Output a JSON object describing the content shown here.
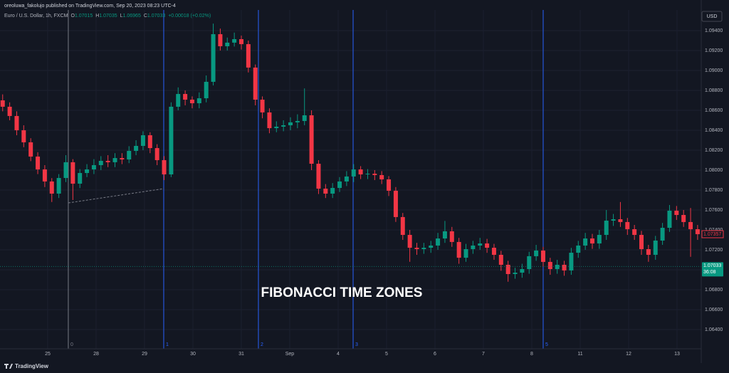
{
  "header": {
    "publisher": "oreoluwa_fakolujo published on TradingView.com, Sep 20, 2023 08:23 UTC-4",
    "symbol": "Euro / U.S. Dollar, 1h, FXCM",
    "ohlc_legend": [
      {
        "label": "O",
        "value": "1.07015"
      },
      {
        "label": "H",
        "value": "1.07035"
      },
      {
        "label": "L",
        "value": "1.06965"
      },
      {
        "label": "C",
        "value": "1.07033"
      }
    ],
    "change": "+0.00018 (+0.02%)",
    "currency": "USD",
    "branding": "TradingView"
  },
  "chart_data": {
    "type": "candlestick",
    "annotation": "FIBONACCI TIME ZONES",
    "up_color": "#089981",
    "down_color": "#f23645",
    "grid": true,
    "x": [
      -0.93,
      -0.785,
      -0.64,
      -0.495,
      -0.35,
      -0.205,
      -0.06,
      0.085,
      0.23,
      0.375,
      0.52,
      0.665,
      0.81,
      0.955,
      1.1,
      1.245,
      1.39,
      1.535,
      1.68,
      1.825,
      1.97,
      2.115,
      2.26,
      2.405,
      2.55,
      2.695,
      2.84,
      2.985,
      3.13,
      3.275,
      3.42,
      3.565,
      3.71,
      3.855,
      4.0,
      4.145,
      4.29,
      4.435,
      4.58,
      4.725,
      4.87,
      5.015,
      5.16,
      5.305,
      5.45,
      5.595,
      5.74,
      5.885,
      6.03,
      6.175,
      6.32,
      6.465,
      6.61,
      6.755,
      6.9,
      7.045,
      7.19,
      7.335,
      7.48,
      7.625,
      7.77,
      7.915,
      8.06,
      8.205,
      8.35,
      8.495,
      8.64,
      8.785,
      8.93,
      9.075,
      9.22,
      9.365,
      9.51,
      9.655,
      9.8,
      9.945,
      10.09,
      10.235,
      10.38,
      10.525,
      10.67,
      10.815,
      10.96,
      11.105,
      11.25,
      11.395,
      11.54,
      11.685,
      11.83,
      11.975,
      12.12,
      12.265,
      12.41,
      12.555,
      12.7,
      12.845,
      12.99,
      13.135,
      13.28,
      13.425
    ],
    "open": [
      1.087,
      1.08636,
      1.08543,
      1.084,
      1.08279,
      1.08136,
      1.08007,
      1.07886,
      1.07764,
      1.07921,
      1.08079,
      1.07864,
      1.07971,
      1.08007,
      1.0805,
      1.08093,
      1.08079,
      1.08121,
      1.08107,
      1.08193,
      1.08243,
      1.0835,
      1.08221,
      1.081,
      1.07957,
      1.08636,
      1.08764,
      1.08707,
      1.08671,
      1.08721,
      1.08886,
      1.09364,
      1.09243,
      1.09279,
      1.09314,
      1.09264,
      1.09029,
      1.08707,
      1.08579,
      1.08421,
      1.08436,
      1.0845,
      1.08479,
      1.08493,
      1.0855,
      1.08064,
      1.07814,
      1.07764,
      1.07821,
      1.07886,
      1.07936,
      1.08007,
      1.07957,
      1.07964,
      1.0795,
      1.07907,
      1.07793,
      1.07529,
      1.0735,
      1.07221,
      1.07207,
      1.07221,
      1.07243,
      1.07314,
      1.07386,
      1.07279,
      1.07121,
      1.07207,
      1.07243,
      1.07264,
      1.07221,
      1.0715,
      1.0705,
      1.06957,
      1.06971,
      1.07007,
      1.07136,
      1.07193,
      1.07079,
      1.07007,
      1.0705,
      1.06993,
      1.07171,
      1.07243,
      1.07314,
      1.07264,
      1.0735,
      1.07493,
      1.07507,
      1.07479,
      1.07407,
      1.0735,
      1.07207,
      1.0715,
      1.07293,
      1.07421,
      1.07593,
      1.0755,
      1.07479,
      1.07407
    ],
    "high": [
      1.0876,
      1.0868,
      1.0859,
      1.0845,
      1.0832,
      1.0818,
      1.0805,
      1.0792,
      1.0796,
      1.0815,
      1.0811,
      1.0801,
      1.0806,
      1.0811,
      1.0814,
      1.0815,
      1.0817,
      1.0817,
      1.0824,
      1.083,
      1.0839,
      1.0838,
      1.0826,
      1.0814,
      1.0868,
      1.0883,
      1.088,
      1.0874,
      1.0878,
      1.0895,
      1.0947,
      1.0942,
      1.0933,
      1.0938,
      1.0935,
      1.093,
      1.0906,
      1.0874,
      1.0862,
      1.0849,
      1.085,
      1.0853,
      1.0856,
      1.0882,
      1.086,
      1.081,
      1.0786,
      1.0787,
      1.0793,
      1.0799,
      1.0806,
      1.0804,
      1.0801,
      1.08,
      1.0799,
      1.0794,
      1.0783,
      1.0757,
      1.074,
      1.0727,
      1.0727,
      1.0729,
      1.0737,
      1.0749,
      1.0743,
      1.0732,
      1.0726,
      1.0729,
      1.0732,
      1.0731,
      1.0726,
      1.0719,
      1.0709,
      1.0702,
      1.0706,
      1.0718,
      1.0725,
      1.0723,
      1.0712,
      1.071,
      1.0709,
      1.0722,
      1.0729,
      1.0737,
      1.0736,
      1.074,
      1.076,
      1.0756,
      1.0768,
      1.0752,
      1.0745,
      1.0739,
      1.0725,
      1.0734,
      1.0747,
      1.0765,
      1.0764,
      1.076,
      1.0762,
      1.0745
    ],
    "low": [
      1.0859,
      1.085,
      1.0835,
      1.0823,
      1.0809,
      1.0796,
      1.0783,
      1.0768,
      1.0772,
      1.0788,
      1.077,
      1.0782,
      1.0793,
      1.0796,
      1.08,
      1.0803,
      1.0803,
      1.0806,
      1.0807,
      1.0815,
      1.082,
      1.0817,
      1.0805,
      1.079,
      1.0793,
      1.086,
      1.0865,
      1.0862,
      1.0862,
      1.0868,
      1.0885,
      1.092,
      1.092,
      1.0924,
      1.0921,
      1.0898,
      1.0865,
      1.0852,
      1.0837,
      1.0838,
      1.0839,
      1.084,
      1.0842,
      1.0845,
      1.08,
      1.0776,
      1.0772,
      1.0772,
      1.0778,
      1.0784,
      1.0788,
      1.0791,
      1.0791,
      1.079,
      1.0786,
      1.0774,
      1.0748,
      1.073,
      1.0708,
      1.0715,
      1.0716,
      1.0717,
      1.072,
      1.0727,
      1.0723,
      1.0706,
      1.0708,
      1.0716,
      1.072,
      1.0717,
      1.071,
      1.0699,
      1.0688,
      1.0691,
      1.0692,
      1.0696,
      1.0709,
      1.0703,
      1.0695,
      1.0696,
      1.0694,
      1.0695,
      1.0712,
      1.072,
      1.0721,
      1.0721,
      1.073,
      1.0744,
      1.0743,
      1.0735,
      1.073,
      1.0715,
      1.0708,
      1.071,
      1.0725,
      1.0738,
      1.075,
      1.0743,
      1.0713,
      1.073
    ],
    "close": [
      1.08636,
      1.08543,
      1.084,
      1.08279,
      1.08136,
      1.08007,
      1.07886,
      1.07764,
      1.07921,
      1.08079,
      1.07864,
      1.07971,
      1.08007,
      1.0805,
      1.08093,
      1.08079,
      1.08121,
      1.08107,
      1.08193,
      1.08243,
      1.0835,
      1.08221,
      1.081,
      1.07957,
      1.08636,
      1.08764,
      1.08707,
      1.08671,
      1.08721,
      1.08886,
      1.09364,
      1.09243,
      1.09279,
      1.09314,
      1.09264,
      1.09029,
      1.08707,
      1.08579,
      1.08421,
      1.08436,
      1.0845,
      1.08479,
      1.08493,
      1.0855,
      1.08064,
      1.07814,
      1.07764,
      1.07821,
      1.07886,
      1.07936,
      1.08007,
      1.07957,
      1.07964,
      1.0795,
      1.07907,
      1.07793,
      1.07529,
      1.0735,
      1.07221,
      1.07207,
      1.07221,
      1.07243,
      1.07314,
      1.07386,
      1.07279,
      1.07121,
      1.07207,
      1.07243,
      1.07264,
      1.07221,
      1.0715,
      1.0705,
      1.06957,
      1.06971,
      1.07007,
      1.07136,
      1.07193,
      1.07079,
      1.07007,
      1.0705,
      1.06993,
      1.07171,
      1.07243,
      1.07314,
      1.07264,
      1.0735,
      1.07493,
      1.07507,
      1.07479,
      1.07407,
      1.0735,
      1.07207,
      1.0715,
      1.07293,
      1.07421,
      1.07593,
      1.0755,
      1.07479,
      1.07407,
      1.07357
    ],
    "xlim": [
      -0.985,
      13.5
    ],
    "xticks": [
      {
        "value": 0,
        "label": "25"
      },
      {
        "value": 1,
        "label": "28"
      },
      {
        "value": 2,
        "label": "29"
      },
      {
        "value": 3,
        "label": "30"
      },
      {
        "value": 4,
        "label": "31"
      },
      {
        "value": 5,
        "label": "Sep"
      },
      {
        "value": 6,
        "label": "4"
      },
      {
        "value": 7,
        "label": "5"
      },
      {
        "value": 8,
        "label": "6"
      },
      {
        "value": 9,
        "label": "7"
      },
      {
        "value": 10,
        "label": "8"
      },
      {
        "value": 11,
        "label": "11"
      },
      {
        "value": 12,
        "label": "12"
      },
      {
        "value": 13,
        "label": "13"
      }
    ],
    "ylim": [
      1.06207,
      1.09607
    ],
    "yticks": [
      {
        "value": 1.064,
        "label": "1.06400"
      },
      {
        "value": 1.066,
        "label": "1.06600"
      },
      {
        "value": 1.068,
        "label": "1.06800"
      },
      {
        "value": 1.07,
        "label": "1.07000"
      },
      {
        "value": 1.072,
        "label": "1.07200"
      },
      {
        "value": 1.074,
        "label": "1.07400"
      },
      {
        "value": 1.076,
        "label": "1.07600"
      },
      {
        "value": 1.078,
        "label": "1.07800"
      },
      {
        "value": 1.08,
        "label": "1.08000"
      },
      {
        "value": 1.082,
        "label": "1.08200"
      },
      {
        "value": 1.084,
        "label": "1.08400"
      },
      {
        "value": 1.086,
        "label": "1.08600"
      },
      {
        "value": 1.088,
        "label": "1.08800"
      },
      {
        "value": 1.09,
        "label": "1.09000"
      },
      {
        "value": 1.092,
        "label": "1.09200"
      },
      {
        "value": 1.094,
        "label": "1.09400"
      }
    ],
    "fib_zones": [
      {
        "x": 0.426,
        "label": "0",
        "color": "#787b86"
      },
      {
        "x": 2.397,
        "label": "1",
        "color": "#2962ff"
      },
      {
        "x": 4.353,
        "label": "2",
        "color": "#2962ff"
      },
      {
        "x": 6.309,
        "label": "3",
        "color": "#2962ff"
      },
      {
        "x": 10.235,
        "label": "5",
        "color": "#2962ff"
      }
    ],
    "trend_line": {
      "x": [
        0.426,
        2.397
      ],
      "y": [
        1.07671,
        1.07814
      ]
    },
    "last_price": {
      "value": 1.07033,
      "label": "1.07033",
      "countdown": "36:08",
      "color": "#089981"
    },
    "marker_price": {
      "value": 1.07357,
      "label": "1.07357",
      "color": "#f23645"
    }
  }
}
